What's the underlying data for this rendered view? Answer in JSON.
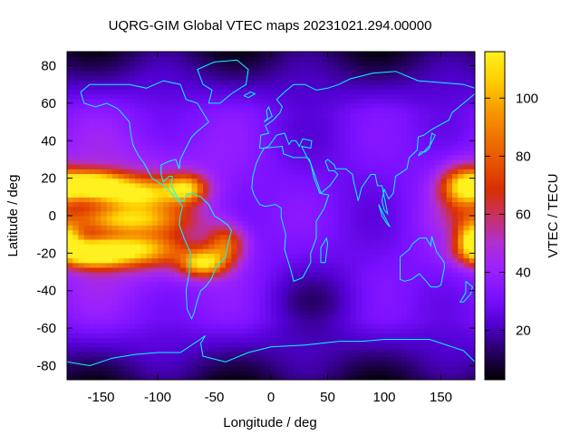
{
  "chart_data": {
    "type": "heatmap",
    "title": "UQRG-GIM Global VTEC maps 20231021.294.00000",
    "xlabel": "Longitude / deg",
    "ylabel": "Latitude / deg",
    "colorbar_label": "VTEC / TECU",
    "xlim": [
      -180,
      180
    ],
    "ylim": [
      -87.5,
      87.5
    ],
    "clim": [
      3,
      116
    ],
    "x_ticks": [
      -150,
      -100,
      -50,
      0,
      50,
      100,
      150
    ],
    "y_ticks": [
      -80,
      -60,
      -40,
      -20,
      0,
      20,
      40,
      60,
      80
    ],
    "colorbar_ticks": [
      20,
      40,
      60,
      80,
      100
    ],
    "colormap": [
      "#000000",
      "#250060",
      "#5000d0",
      "#7a10ff",
      "#9a20ff",
      "#b030d0",
      "#c83060",
      "#d83000",
      "#e85500",
      "#f07800",
      "#f8a000",
      "#ffd000",
      "#fff020"
    ],
    "coastline_color": "#00ffff",
    "grid": false,
    "colorbar_position": "right",
    "grid_resolution": {
      "lon_step": 5,
      "lat_step": 2.5
    },
    "features": [
      {
        "desc": "equatorial anomaly north crest Pacific",
        "lon": -160,
        "lat": 17,
        "value": 112,
        "sx": 20,
        "sy": 5
      },
      {
        "desc": "equatorial anomaly south crest Pacific",
        "lon": -160,
        "lat": -20,
        "value": 112,
        "sx": 20,
        "sy": 5
      },
      {
        "desc": "crest north central Pacific",
        "lon": -120,
        "lat": 12,
        "value": 95,
        "sx": 28,
        "sy": 6
      },
      {
        "desc": "crest south central Pacific",
        "lon": -120,
        "lat": -18,
        "value": 92,
        "sx": 28,
        "sy": 6
      },
      {
        "desc": "equator trough Pacific",
        "lon": -130,
        "lat": -2,
        "value": 85,
        "sx": 35,
        "sy": 5
      },
      {
        "desc": "crest north Americas",
        "lon": -75,
        "lat": 15,
        "value": 85,
        "sx": 12,
        "sy": 5
      },
      {
        "desc": "crest south America",
        "lon": -60,
        "lat": -25,
        "value": 100,
        "sx": 14,
        "sy": 5
      },
      {
        "desc": "south Atlantic crest",
        "lon": -40,
        "lat": -15,
        "value": 75,
        "sx": 12,
        "sy": 7
      },
      {
        "desc": "crest east Pacific north",
        "lon": 170,
        "lat": 15,
        "value": 88,
        "sx": 14,
        "sy": 8
      },
      {
        "desc": "crest east Pacific south",
        "lon": 178,
        "lat": -12,
        "value": 98,
        "sx": 10,
        "sy": 6
      }
    ]
  }
}
